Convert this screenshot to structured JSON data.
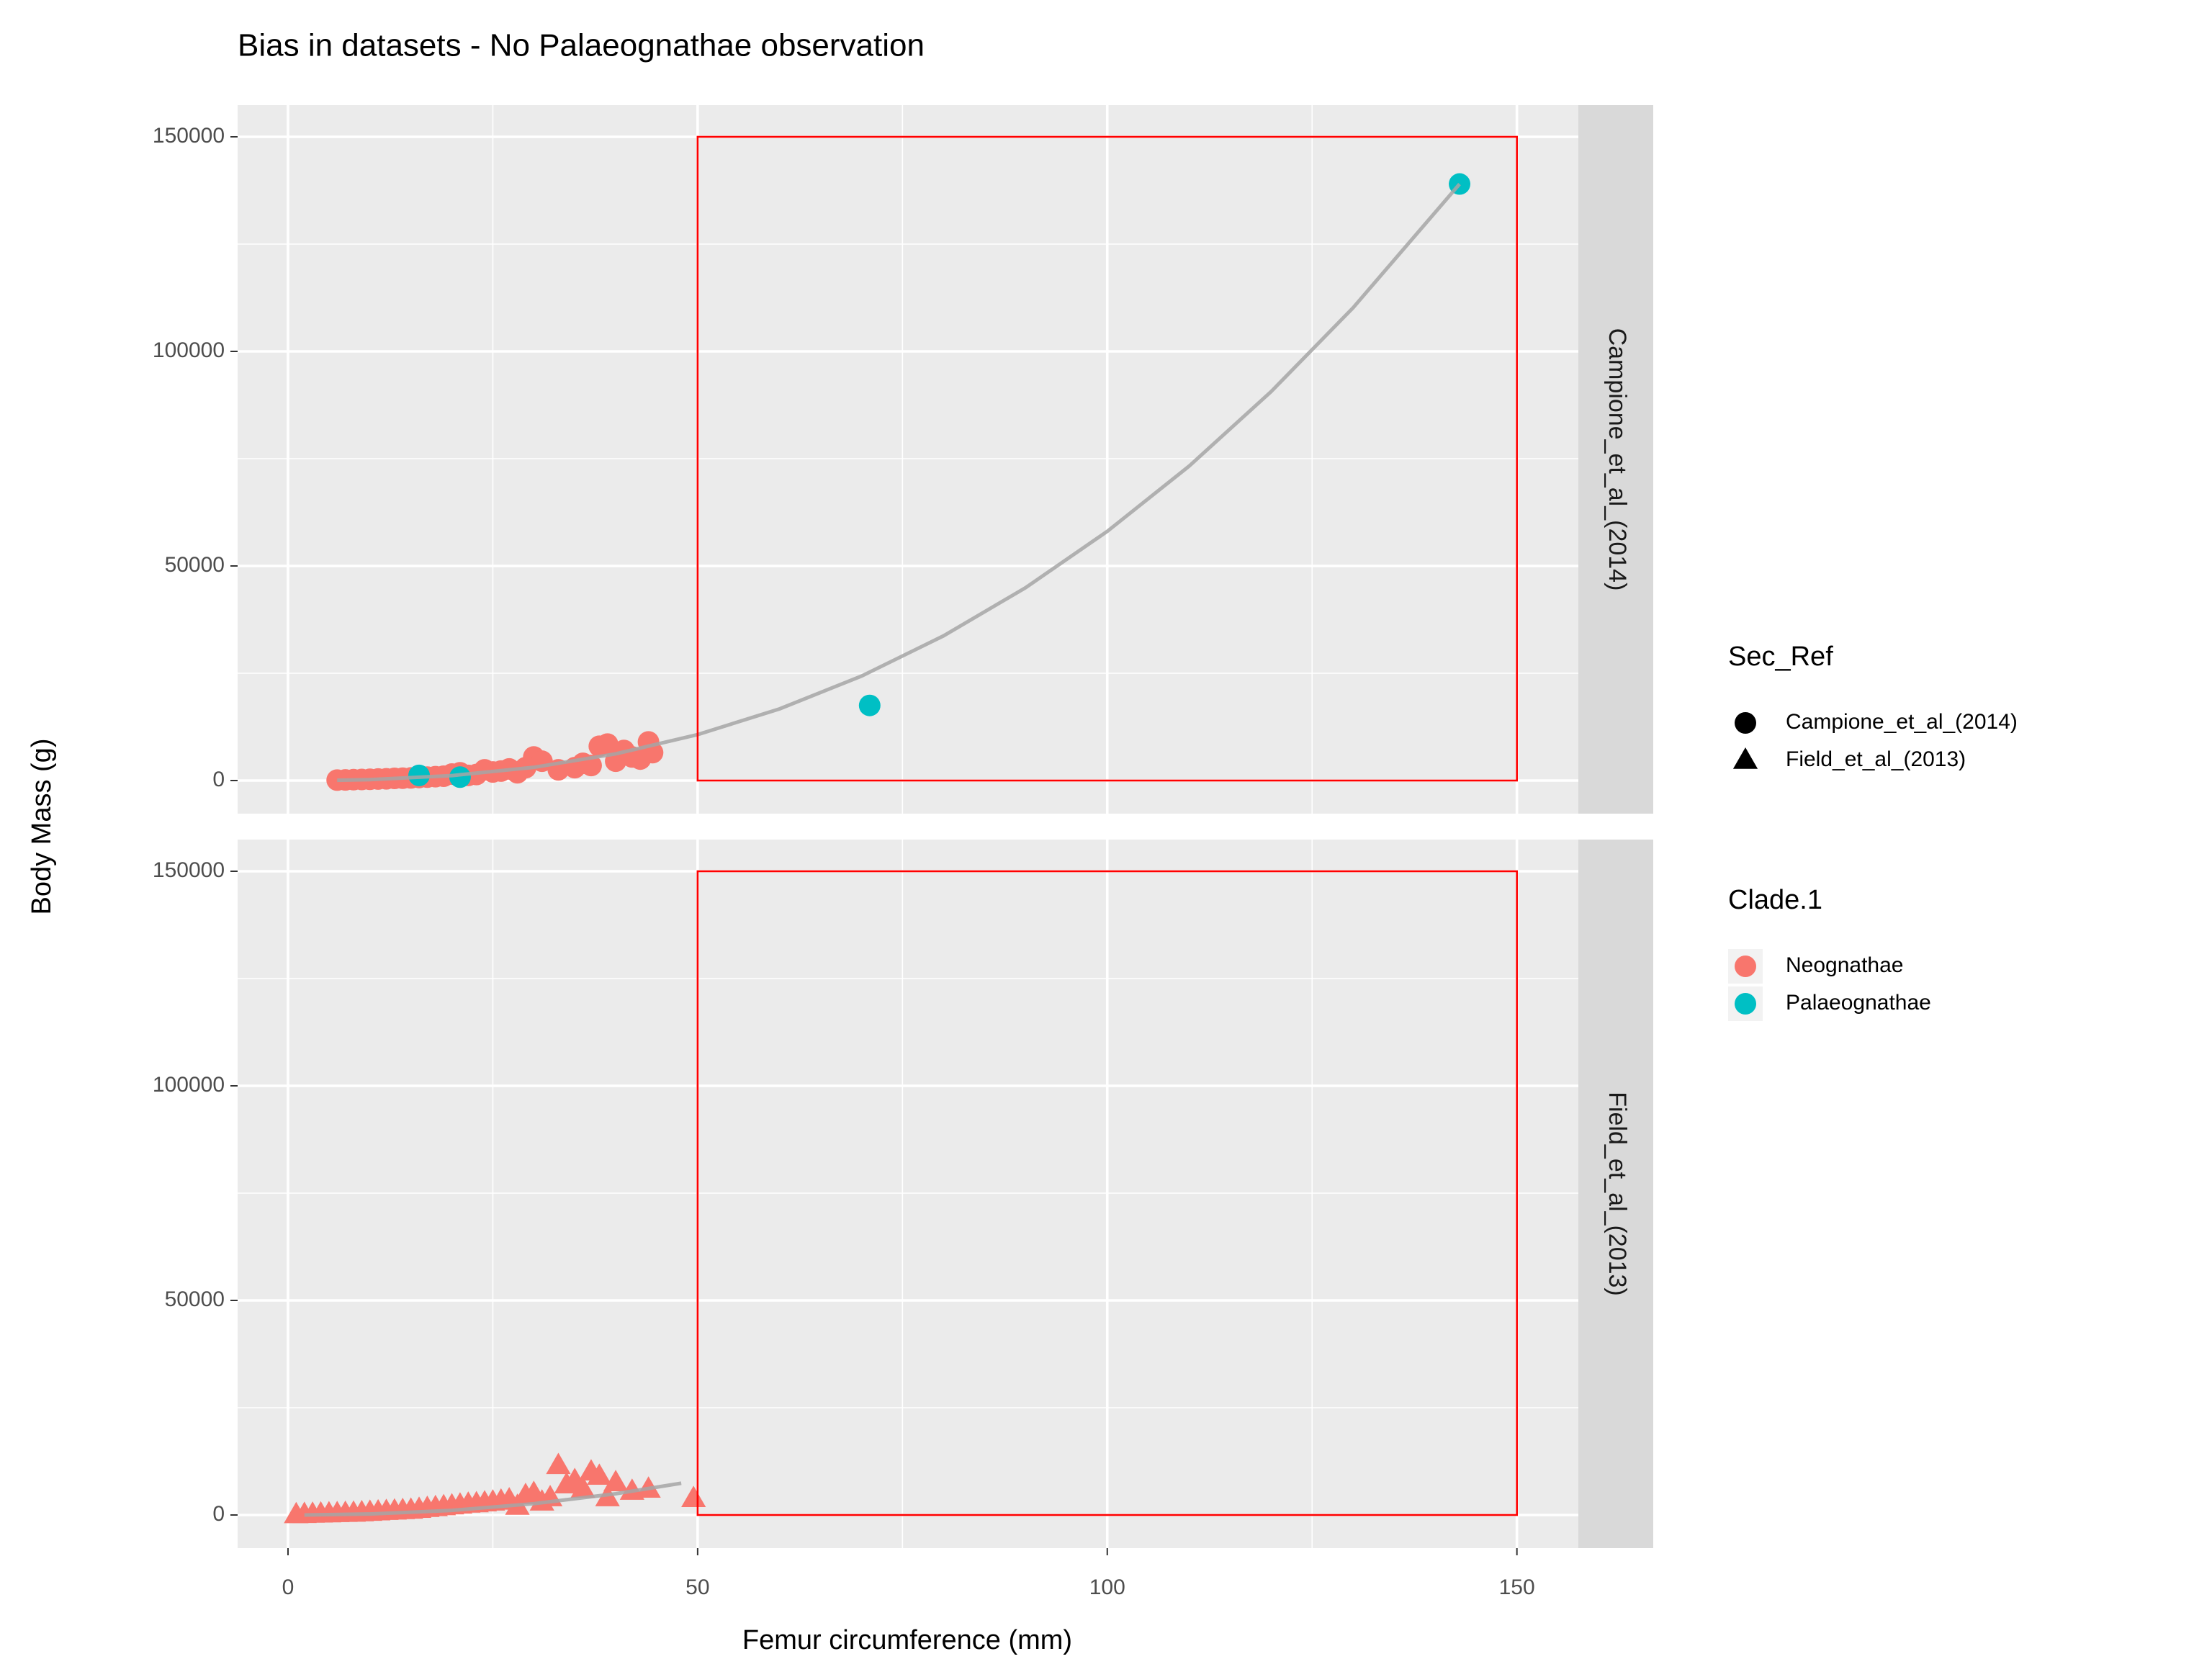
{
  "chart_data": {
    "type": "scatter",
    "title": "Bias in datasets - No Palaeognathae observation",
    "x_label": "Femur circumference (mm)",
    "y_label": "Body Mass (g)",
    "xlim": [
      -6.15,
      157.5
    ],
    "ylim": [
      -7718,
      157383
    ],
    "xticks": [
      0,
      50,
      100,
      150
    ],
    "yticks": [
      0,
      50000,
      100000,
      150000
    ],
    "xminor": [
      25,
      75,
      125
    ],
    "yminor": [
      25000,
      75000,
      125000
    ],
    "grid": true,
    "shape_legend_title": "Sec_Ref",
    "color_legend_title": "Clade.1",
    "highlight": {
      "xlim": [
        50,
        150
      ],
      "ylim": [
        0,
        150000
      ],
      "color": "#ff0000"
    },
    "fit_color": "#a6a6a6",
    "facets": [
      {
        "name": "Campione_et_al_(2014)",
        "shape": "circle",
        "series": [
          {
            "name": "Neognathae",
            "color": "#f8766d",
            "x": [
              6,
              7,
              8,
              9,
              10,
              11,
              12,
              13,
              14,
              15,
              16,
              17,
              18,
              19,
              20,
              21,
              22,
              23,
              24,
              25,
              26,
              27,
              28,
              29,
              30,
              31,
              33,
              35,
              36,
              37,
              38,
              39,
              40,
              41,
              42,
              43,
              44,
              44.5
            ],
            "y": [
              100,
              150,
              200,
              250,
              300,
              350,
              400,
              500,
              550,
              600,
              700,
              800,
              900,
              1000,
              1500,
              1800,
              1200,
              1400,
              2500,
              2000,
              2200,
              2700,
              1800,
              3000,
              5500,
              4500,
              2500,
              3000,
              4000,
              3500,
              8000,
              8500,
              4500,
              7000,
              5500,
              5000,
              9000,
              6500
            ]
          },
          {
            "name": "Palaeognathae",
            "color": "#00bfc4",
            "x": [
              16,
              21,
              71,
              143
            ],
            "y": [
              1200,
              800,
              17500,
              139000
            ]
          }
        ],
        "fit": {
          "x": [
            6,
            10,
            20,
            30,
            40,
            50,
            60,
            70,
            80,
            90,
            100,
            110,
            120,
            130,
            143
          ],
          "y": [
            61,
            211,
            1145,
            3077,
            6214,
            10705,
            16700,
            24330,
            33700,
            44900,
            58070,
            73280,
            90630,
            110160,
            139000
          ]
        }
      },
      {
        "name": "Field_et_al_(2013)",
        "shape": "triangle",
        "series": [
          {
            "name": "Neognathae",
            "color": "#f8766d",
            "x": [
              1,
              2,
              3,
              4,
              5,
              6,
              7,
              8,
              9,
              10,
              11,
              12,
              13,
              14,
              15,
              16,
              17,
              18,
              19,
              20,
              21,
              22,
              23,
              24,
              25,
              26,
              27,
              28,
              29,
              30,
              31,
              32,
              33,
              34,
              35,
              36,
              37,
              38,
              39,
              40,
              42,
              44,
              49.5
            ],
            "y": [
              50,
              100,
              150,
              200,
              250,
              300,
              350,
              400,
              500,
              600,
              700,
              800,
              900,
              1000,
              1100,
              1300,
              1500,
              1700,
              1900,
              2100,
              2300,
              2500,
              2600,
              2800,
              3000,
              3200,
              3500,
              2000,
              4500,
              5000,
              3000,
              4000,
              11500,
              7000,
              8000,
              6000,
              10000,
              9000,
              4000,
              7500,
              5500,
              6000,
              3800
            ]
          }
        ],
        "fit": {
          "x": [
            2,
            10,
            20,
            30,
            40,
            48
          ],
          "y": [
            7,
            235,
            1078,
            2631,
            4955,
            7400
          ]
        }
      }
    ]
  }
}
